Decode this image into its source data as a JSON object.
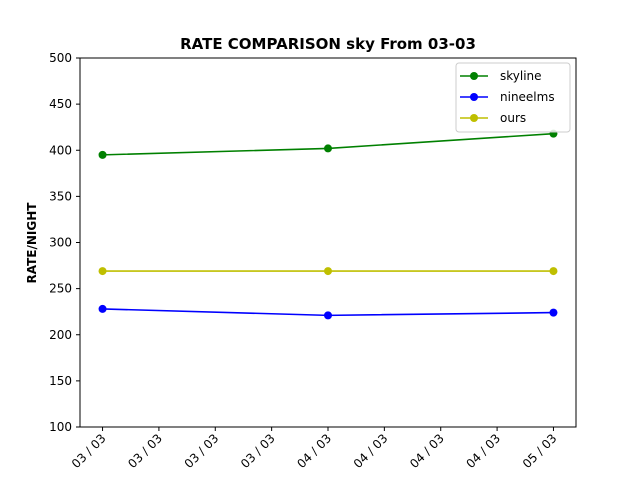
{
  "chart_data": {
    "type": "line",
    "title": "RATE COMPARISON sky From 03-03",
    "xlabel": "",
    "ylabel": "RATE/NIGHT",
    "ylim": [
      100,
      500
    ],
    "yticks": [
      100,
      150,
      200,
      250,
      300,
      350,
      400,
      450,
      500
    ],
    "xlim": [
      -0.1,
      2.1
    ],
    "xticks": [
      0,
      0.25,
      0.5,
      0.75,
      1,
      1.25,
      1.5,
      1.75,
      2
    ],
    "xtick_labels": [
      "03 / 03",
      "03 / 03",
      "03 / 03",
      "03 / 03",
      "04 / 03",
      "04 / 03",
      "04 / 03",
      "04 / 03",
      "05 / 03"
    ],
    "x": [
      0,
      1,
      2
    ],
    "grid": false,
    "legend_position": "top-right",
    "series": [
      {
        "name": "skyline",
        "color": "#008000",
        "values": [
          395,
          402,
          418
        ]
      },
      {
        "name": "nineelms",
        "color": "#0000ff",
        "values": [
          228,
          221,
          224
        ]
      },
      {
        "name": "ours",
        "color": "#bfbf00",
        "values": [
          269,
          269,
          269
        ]
      }
    ]
  }
}
